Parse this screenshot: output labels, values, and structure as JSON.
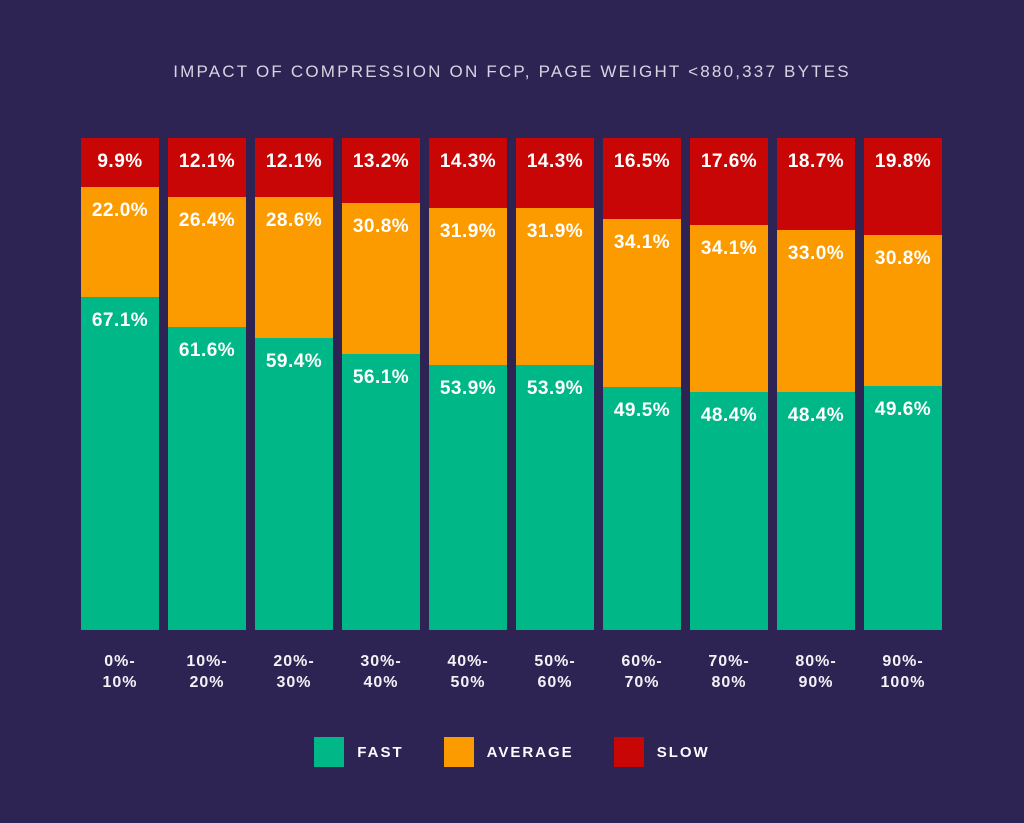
{
  "title": "IMPACT OF COMPRESSION ON FCP, PAGE WEIGHT <880,337 BYTES",
  "colors": {
    "background": "#2D2453",
    "fast": "#00B887",
    "average": "#FB9B00",
    "slow": "#C90606",
    "title_text": "#D8D5E2",
    "axis_text": "#F3F2F7",
    "value_text": "#FFFFFF"
  },
  "chart_data": {
    "type": "bar",
    "stacked": true,
    "percent_stacked": true,
    "title": "IMPACT OF COMPRESSION ON FCP, PAGE WEIGHT <880,337 BYTES",
    "categories": [
      "0%-10%",
      "10%-20%",
      "20%-30%",
      "30%-40%",
      "40%-50%",
      "50%-60%",
      "60%-70%",
      "70%-80%",
      "80%-90%",
      "90%-100%"
    ],
    "series": [
      {
        "name": "FAST",
        "color": "#00B887",
        "values": [
          67.1,
          61.6,
          59.4,
          56.1,
          53.9,
          53.9,
          49.5,
          48.4,
          48.4,
          49.6
        ]
      },
      {
        "name": "AVERAGE",
        "color": "#FB9B00",
        "values": [
          22.0,
          26.4,
          28.6,
          30.8,
          31.9,
          31.9,
          34.1,
          34.1,
          33.0,
          30.8
        ]
      },
      {
        "name": "SLOW",
        "color": "#C90606",
        "values": [
          9.9,
          12.1,
          12.1,
          13.2,
          14.3,
          14.3,
          16.5,
          17.6,
          18.7,
          19.8
        ]
      }
    ],
    "stack_order_top_to_bottom": [
      "SLOW",
      "AVERAGE",
      "FAST"
    ],
    "value_suffix": "%",
    "value_decimals": 1,
    "xlabel": "",
    "ylabel": "",
    "grid": false,
    "legend_position": "bottom",
    "legend": [
      "FAST",
      "AVERAGE",
      "SLOW"
    ]
  }
}
